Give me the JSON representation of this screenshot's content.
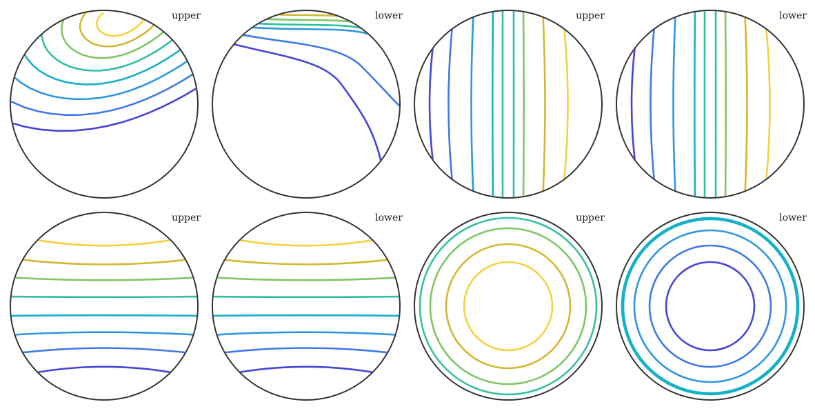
{
  "chart_data": [
    {
      "type": "contour",
      "label": "upper",
      "row": 0,
      "col": 0,
      "pattern": "corner",
      "levels": 8,
      "note": "levels increase toward the top-right rim"
    },
    {
      "type": "contour",
      "label": "lower",
      "row": 0,
      "col": 1,
      "pattern": "corner-steep",
      "levels": 7,
      "note": "levels crowd near the top rim"
    },
    {
      "type": "contour",
      "label": "upper",
      "row": 0,
      "col": 2,
      "pattern": "vertical",
      "levels": 9
    },
    {
      "type": "contour",
      "label": "lower",
      "row": 0,
      "col": 3,
      "pattern": "vertical",
      "levels": 9
    },
    {
      "type": "contour",
      "label": "upper",
      "row": 1,
      "col": 0,
      "pattern": "horizontal",
      "levels": 8
    },
    {
      "type": "contour",
      "label": "lower",
      "row": 1,
      "col": 1,
      "pattern": "horizontal",
      "levels": 8
    },
    {
      "type": "contour",
      "label": "upper",
      "row": 1,
      "col": 2,
      "pattern": "concentric",
      "levels": 4,
      "level_colors": [
        "#f5d13e",
        "#d4b62f",
        "#7ec663",
        "#36c0a2"
      ]
    },
    {
      "type": "contour",
      "label": "lower",
      "row": 1,
      "col": 3,
      "pattern": "concentric",
      "levels": 5,
      "level_colors": [
        "#4444d8",
        "#3d7ae6",
        "#2e96df",
        "#16aecd",
        "#12b4c4"
      ]
    }
  ],
  "palette": [
    "#4444d8",
    "#3d7ae6",
    "#2e96df",
    "#16aecd",
    "#2fbf9f",
    "#7ec663",
    "#d4b62f",
    "#f5d13e"
  ],
  "rim_color": "#333333"
}
